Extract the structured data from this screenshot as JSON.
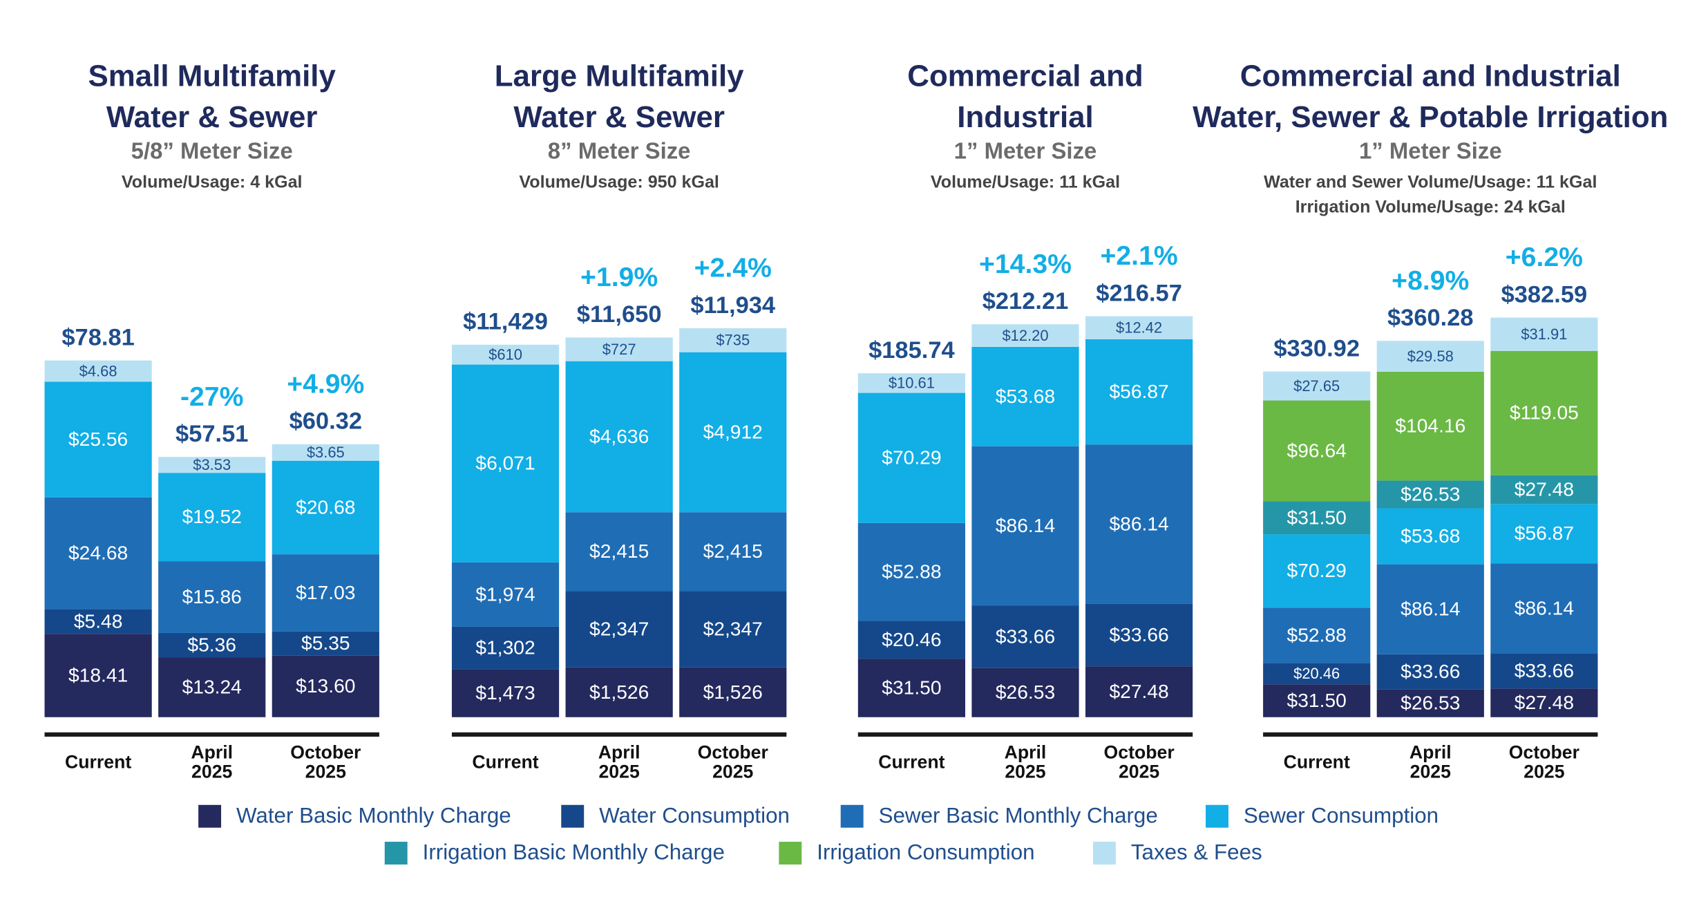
{
  "chart_data": [
    {
      "type": "bar",
      "stacked": true,
      "title": [
        "Small Multifamily",
        "Water & Sewer"
      ],
      "subtitle": "5/8” Meter Size",
      "notes": [
        "Volume/Usage: 4 kGal"
      ],
      "categories": [
        "Current",
        "April 2025",
        "October 2025"
      ],
      "ylim": [
        0,
        90
      ],
      "series": [
        {
          "name": "Water Basic Monthly Charge",
          "color": "#24295e",
          "values": [
            18.41,
            13.24,
            13.6
          ],
          "value_labels": [
            "$18.41",
            "$13.24",
            "$13.60"
          ]
        },
        {
          "name": "Water Consumption",
          "color": "#15488a",
          "values": [
            5.48,
            5.36,
            5.35
          ],
          "value_labels": [
            "$5.48",
            "$5.36",
            "$5.35"
          ]
        },
        {
          "name": "Sewer Basic Monthly Charge",
          "color": "#1f6db5",
          "values": [
            24.68,
            15.86,
            17.03
          ],
          "value_labels": [
            "$24.68",
            "$15.86",
            "$17.03"
          ]
        },
        {
          "name": "Sewer Consumption",
          "color": "#12aee6",
          "values": [
            25.56,
            19.52,
            20.68
          ],
          "value_labels": [
            "$25.56",
            "$19.52",
            "$20.68"
          ]
        },
        {
          "name": "Taxes & Fees",
          "color": "#b7e1f3",
          "values": [
            4.68,
            3.53,
            3.65
          ],
          "value_labels": [
            "$4.68",
            "$3.53",
            "$3.65"
          ]
        }
      ],
      "totals": [
        78.81,
        57.51,
        60.32
      ],
      "total_labels": [
        "$78.81",
        "$57.51",
        "$60.32"
      ],
      "changes": [
        null,
        -27,
        4.9
      ],
      "change_labels": [
        null,
        "-27%",
        "+4.9%"
      ]
    },
    {
      "type": "bar",
      "stacked": true,
      "title": [
        "Large Multifamily",
        "Water & Sewer"
      ],
      "subtitle": "8” Meter Size",
      "notes": [
        "Volume/Usage: 950 kGal"
      ],
      "categories": [
        "Current",
        "April 2025",
        "October 2025"
      ],
      "ylim": [
        0,
        12500
      ],
      "series": [
        {
          "name": "Water Basic Monthly Charge",
          "color": "#24295e",
          "values": [
            1473,
            1526,
            1526
          ],
          "value_labels": [
            "$1,473",
            "$1,526",
            "$1,526"
          ]
        },
        {
          "name": "Water Consumption",
          "color": "#15488a",
          "values": [
            1302,
            2347,
            2347
          ],
          "value_labels": [
            "$1,302",
            "$2,347",
            "$2,347"
          ]
        },
        {
          "name": "Sewer Basic Monthly Charge",
          "color": "#1f6db5",
          "values": [
            1974,
            2415,
            2415
          ],
          "value_labels": [
            "$1,974",
            "$2,415",
            "$2,415"
          ]
        },
        {
          "name": "Sewer Consumption",
          "color": "#12aee6",
          "values": [
            6071,
            4636,
            4912
          ],
          "value_labels": [
            "$6,071",
            "$4,636",
            "$4,912"
          ]
        },
        {
          "name": "Taxes & Fees",
          "color": "#b7e1f3",
          "values": [
            610,
            727,
            735
          ],
          "value_labels": [
            "$610",
            "$727",
            "$735"
          ]
        }
      ],
      "totals": [
        11429,
        11650,
        11934
      ],
      "total_labels": [
        "$11,429",
        "$11,650",
        "$11,934"
      ],
      "changes": [
        null,
        1.9,
        2.4
      ],
      "change_labels": [
        null,
        "+1.9%",
        "+2.4%"
      ]
    },
    {
      "type": "bar",
      "stacked": true,
      "title": [
        "Commercial and",
        "Industrial"
      ],
      "subtitle": "1” Meter Size",
      "notes": [
        "Volume/Usage: 11 kGal"
      ],
      "categories": [
        "Current",
        "April 2025",
        "October 2025"
      ],
      "ylim": [
        0,
        220
      ],
      "series": [
        {
          "name": "Water Basic Monthly Charge",
          "color": "#24295e",
          "values": [
            31.5,
            26.53,
            27.48
          ],
          "value_labels": [
            "$31.50",
            "$26.53",
            "$27.48"
          ]
        },
        {
          "name": "Water Consumption",
          "color": "#15488a",
          "values": [
            20.46,
            33.66,
            33.66
          ],
          "value_labels": [
            "$20.46",
            "$33.66",
            "$33.66"
          ]
        },
        {
          "name": "Sewer Basic Monthly Charge",
          "color": "#1f6db5",
          "values": [
            52.88,
            86.14,
            86.14
          ],
          "value_labels": [
            "$52.88",
            "$86.14",
            "$86.14"
          ]
        },
        {
          "name": "Sewer Consumption",
          "color": "#12aee6",
          "values": [
            70.29,
            53.68,
            56.87
          ],
          "value_labels": [
            "$70.29",
            "$53.68",
            "$56.87"
          ]
        },
        {
          "name": "Taxes & Fees",
          "color": "#b7e1f3",
          "values": [
            10.61,
            12.2,
            12.42
          ],
          "value_labels": [
            "$10.61",
            "$12.20",
            "$12.42"
          ]
        }
      ],
      "totals": [
        185.74,
        212.21,
        216.57
      ],
      "total_labels": [
        "$185.74",
        "$212.21",
        "$216.57"
      ],
      "changes": [
        null,
        14.3,
        2.1
      ],
      "change_labels": [
        null,
        "+14.3%",
        "+2.1%"
      ]
    },
    {
      "type": "bar",
      "stacked": true,
      "title": [
        "Commercial and Industrial",
        "Water, Sewer & Potable Irrigation"
      ],
      "subtitle": "1” Meter Size",
      "notes": [
        "Water and Sewer Volume/Usage: 11 kGal",
        "Irrigation Volume/Usage: 24 kGal"
      ],
      "categories": [
        "Current",
        "April 2025",
        "October 2025"
      ],
      "ylim": [
        0,
        390
      ],
      "series": [
        {
          "name": "Water Basic Monthly Charge",
          "color": "#24295e",
          "values": [
            31.5,
            26.53,
            27.48
          ],
          "value_labels": [
            "$31.50",
            "$26.53",
            "$27.48"
          ]
        },
        {
          "name": "Water Consumption",
          "color": "#15488a",
          "values": [
            20.46,
            33.66,
            33.66
          ],
          "value_labels": [
            "$20.46",
            "$33.66",
            "$33.66"
          ]
        },
        {
          "name": "Sewer Basic Monthly Charge",
          "color": "#1f6db5",
          "values": [
            52.88,
            86.14,
            86.14
          ],
          "value_labels": [
            "$52.88",
            "$86.14",
            "$86.14"
          ]
        },
        {
          "name": "Sewer Consumption",
          "color": "#12aee6",
          "values": [
            70.29,
            53.68,
            56.87
          ],
          "value_labels": [
            "$70.29",
            "$53.68",
            "$56.87"
          ]
        },
        {
          "name": "Irrigation Basic Monthly Charge",
          "color": "#2596a8",
          "values": [
            31.5,
            26.53,
            27.48
          ],
          "value_labels": [
            "$31.50",
            "$26.53",
            "$27.48"
          ]
        },
        {
          "name": "Irrigation Consumption",
          "color": "#6ab945",
          "values": [
            96.64,
            104.16,
            119.05
          ],
          "value_labels": [
            "$96.64",
            "$104.16",
            "$119.05"
          ]
        },
        {
          "name": "Taxes & Fees",
          "color": "#b7e1f3",
          "values": [
            27.65,
            29.58,
            31.91
          ],
          "value_labels": [
            "$27.65",
            "$29.58",
            "$31.91"
          ]
        }
      ],
      "totals": [
        330.92,
        360.28,
        382.59
      ],
      "total_labels": [
        "$330.92",
        "$360.28",
        "$382.59"
      ],
      "changes": [
        null,
        8.9,
        6.2
      ],
      "change_labels": [
        null,
        "+8.9%",
        "+6.2%"
      ]
    }
  ]
}
